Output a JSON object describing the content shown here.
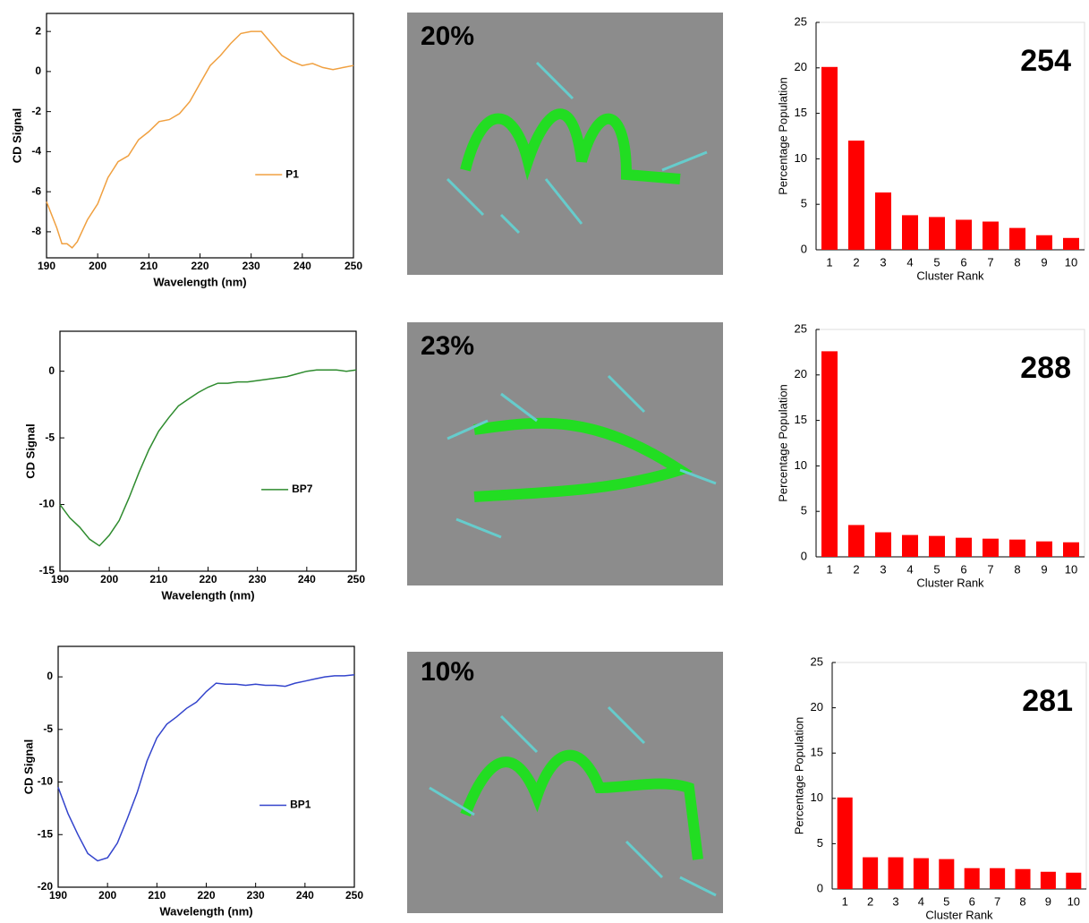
{
  "chart_data": [
    {
      "type": "line",
      "x": [
        190,
        192,
        193,
        194,
        195,
        196,
        198,
        200,
        202,
        204,
        206,
        208,
        210,
        212,
        214,
        216,
        218,
        220,
        222,
        224,
        226,
        228,
        230,
        232,
        234,
        236,
        238,
        240,
        242,
        244,
        246,
        248,
        250
      ],
      "series": [
        {
          "name": "P1",
          "color": "#f0a040",
          "values": [
            -6.5,
            -7.8,
            -8.6,
            -8.6,
            -8.8,
            -8.5,
            -7.4,
            -6.6,
            -5.3,
            -4.5,
            -4.2,
            -3.4,
            -3.0,
            -2.5,
            -2.4,
            -2.1,
            -1.5,
            -0.6,
            0.3,
            0.8,
            1.4,
            1.9,
            2.0,
            2.0,
            1.4,
            0.8,
            0.5,
            0.3,
            0.4,
            0.2,
            0.1,
            0.2,
            0.3
          ]
        }
      ],
      "xlabel": "Wavelength (nm)",
      "ylabel": "CD Signal",
      "xlim": [
        190,
        250
      ],
      "ylim": [
        -9.3,
        2.9
      ],
      "xticks": [
        190,
        200,
        210,
        220,
        230,
        240,
        250
      ],
      "yticks": [
        -8,
        -6,
        -4,
        -2,
        0,
        2
      ],
      "legend": "center-right"
    },
    {
      "type": "bar",
      "categories": [
        "1",
        "2",
        "3",
        "4",
        "5",
        "6",
        "7",
        "8",
        "9",
        "10"
      ],
      "values": [
        20.1,
        12,
        6.3,
        3.8,
        3.6,
        3.3,
        3.1,
        2.4,
        1.6,
        1.3
      ],
      "color": "#ff0000",
      "xlabel": "Cluster Rank",
      "ylabel": "Percentage Population",
      "annotation": "254",
      "ylim": [
        0,
        25
      ],
      "yticks": [
        0,
        5,
        10,
        15,
        20,
        25
      ]
    },
    {
      "type": "line",
      "x": [
        190,
        192,
        194,
        196,
        198,
        200,
        202,
        204,
        206,
        208,
        210,
        212,
        214,
        216,
        218,
        220,
        222,
        224,
        226,
        228,
        230,
        232,
        234,
        236,
        238,
        240,
        242,
        244,
        246,
        248,
        250
      ],
      "series": [
        {
          "name": "BP7",
          "color": "#2e8b2e",
          "values": [
            -10,
            -11,
            -11.7,
            -12.6,
            -13.1,
            -12.3,
            -11.2,
            -9.5,
            -7.6,
            -5.9,
            -4.5,
            -3.5,
            -2.6,
            -2.1,
            -1.6,
            -1.2,
            -0.9,
            -0.9,
            -0.8,
            -0.8,
            -0.7,
            -0.6,
            -0.5,
            -0.4,
            -0.2,
            0,
            0.1,
            0.1,
            0.1,
            0,
            0.1
          ]
        }
      ],
      "xlabel": "Wavelength (nm)",
      "ylabel": "CD Signal",
      "xlim": [
        190,
        250
      ],
      "ylim": [
        -15,
        3
      ],
      "xticks": [
        190,
        200,
        210,
        220,
        230,
        240,
        250
      ],
      "yticks": [
        -15,
        -10,
        -5,
        0
      ],
      "legend": "center-right"
    },
    {
      "type": "bar",
      "categories": [
        "1",
        "2",
        "3",
        "4",
        "5",
        "6",
        "7",
        "8",
        "9",
        "10"
      ],
      "values": [
        22.6,
        3.5,
        2.7,
        2.4,
        2.3,
        2.1,
        2.0,
        1.9,
        1.7,
        1.6
      ],
      "color": "#ff0000",
      "xlabel": "Cluster Rank",
      "ylabel": "Percentage Population",
      "annotation": "288",
      "ylim": [
        0,
        25
      ],
      "yticks": [
        0,
        5,
        10,
        15,
        20,
        25
      ]
    },
    {
      "type": "line",
      "x": [
        190,
        192,
        194,
        196,
        198,
        200,
        202,
        204,
        206,
        208,
        210,
        212,
        214,
        216,
        218,
        220,
        222,
        224,
        226,
        228,
        230,
        232,
        234,
        236,
        238,
        240,
        242,
        244,
        246,
        248,
        250
      ],
      "series": [
        {
          "name": "BP1",
          "color": "#3344cc",
          "values": [
            -10.5,
            -13,
            -15,
            -16.8,
            -17.5,
            -17.2,
            -15.8,
            -13.5,
            -11,
            -8,
            -5.8,
            -4.5,
            -3.8,
            -3,
            -2.4,
            -1.4,
            -0.6,
            -0.7,
            -0.7,
            -0.8,
            -0.7,
            -0.8,
            -0.8,
            -0.9,
            -0.6,
            -0.4,
            -0.2,
            0,
            0.1,
            0.1,
            0.2
          ]
        }
      ],
      "xlabel": "Wavelength (nm)",
      "ylabel": "CD Signal",
      "xlim": [
        190,
        250
      ],
      "ylim": [
        -20,
        2.9
      ],
      "xticks": [
        190,
        200,
        210,
        220,
        230,
        240,
        250
      ],
      "yticks": [
        -20,
        -15,
        -10,
        -5,
        0
      ],
      "legend": "center-right"
    },
    {
      "type": "bar",
      "categories": [
        "1",
        "2",
        "3",
        "4",
        "5",
        "6",
        "7",
        "8",
        "9",
        "10"
      ],
      "values": [
        10.1,
        3.5,
        3.5,
        3.4,
        3.3,
        2.3,
        2.3,
        2.2,
        1.9,
        1.8
      ],
      "color": "#ff0000",
      "xlabel": "Cluster Rank",
      "ylabel": "Percentage Population",
      "annotation": "281",
      "ylim": [
        0,
        25
      ],
      "yticks": [
        0,
        5,
        10,
        15,
        20,
        25
      ]
    }
  ],
  "images": [
    {
      "label": "20%"
    },
    {
      "label": "23%"
    },
    {
      "label": "10%"
    }
  ]
}
